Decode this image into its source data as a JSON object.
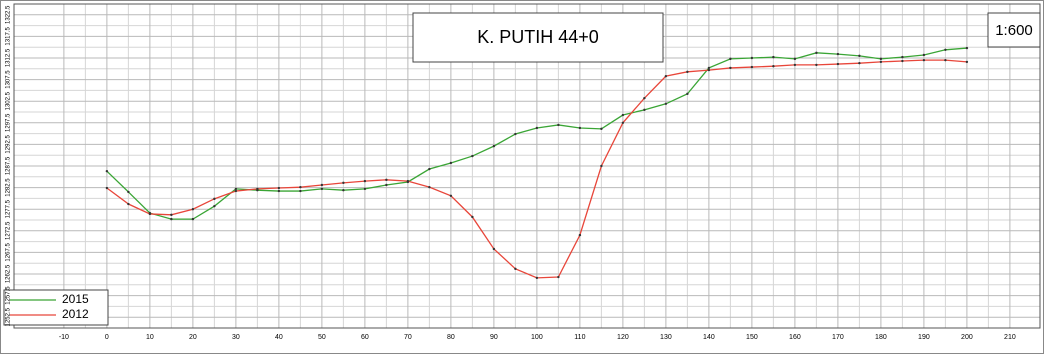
{
  "chart_data": {
    "type": "line",
    "title": "K. PUTIH 44+0",
    "scale_label": "1:600",
    "x": [
      0,
      5,
      10,
      15,
      20,
      25,
      30,
      35,
      40,
      45,
      50,
      55,
      60,
      65,
      70,
      75,
      80,
      85,
      90,
      95,
      100,
      105,
      110,
      115,
      120,
      125,
      130,
      135,
      140,
      145,
      150,
      155,
      160,
      165,
      170,
      175,
      180,
      185,
      190,
      195,
      200
    ],
    "series": [
      {
        "name": "2015",
        "color": "#3aa535",
        "values": [
          1286.3,
          1281.5,
          1276.6,
          1275.2,
          1275.2,
          1278.2,
          1282.2,
          1281.9,
          1281.7,
          1281.7,
          1282.2,
          1281.9,
          1282.2,
          1283.1,
          1283.8,
          1286.8,
          1288.2,
          1289.8,
          1292.1,
          1294.9,
          1296.3,
          1297.0,
          1296.3,
          1296.1,
          1299.3,
          1300.5,
          1301.9,
          1304.2,
          1310.2,
          1312.3,
          1312.5,
          1312.7,
          1312.3,
          1313.7,
          1313.4,
          1313.0,
          1312.3,
          1312.7,
          1313.2,
          1314.4,
          1314.8
        ]
      },
      {
        "name": "2012",
        "color": "#e8463a",
        "values": [
          1282.4,
          1278.7,
          1276.4,
          1276.2,
          1277.5,
          1279.9,
          1281.7,
          1282.2,
          1282.4,
          1282.6,
          1283.1,
          1283.6,
          1284.0,
          1284.3,
          1284.0,
          1282.6,
          1280.6,
          1275.7,
          1268.3,
          1263.7,
          1261.6,
          1261.8,
          1271.5,
          1287.5,
          1297.5,
          1303.2,
          1308.3,
          1309.3,
          1309.7,
          1310.2,
          1310.4,
          1310.6,
          1310.9,
          1310.9,
          1311.1,
          1311.3,
          1311.6,
          1311.8,
          1312.0,
          1312.0,
          1311.6
        ]
      }
    ],
    "xlim": [
      -21.6,
      217
    ],
    "xticks": [
      -10,
      0,
      10,
      20,
      30,
      40,
      50,
      60,
      70,
      80,
      90,
      100,
      110,
      120,
      130,
      140,
      150,
      160,
      170,
      180,
      190,
      200,
      210
    ],
    "ylim": [
      1250,
      1325
    ],
    "yticks": [
      1252.5,
      1257.5,
      1262.5,
      1267.5,
      1272.5,
      1277.5,
      1282.5,
      1287.5,
      1292.5,
      1297.5,
      1302.5,
      1307.5,
      1312.5,
      1317.5,
      1322.5
    ],
    "grid": true,
    "legend": "lower left"
  }
}
